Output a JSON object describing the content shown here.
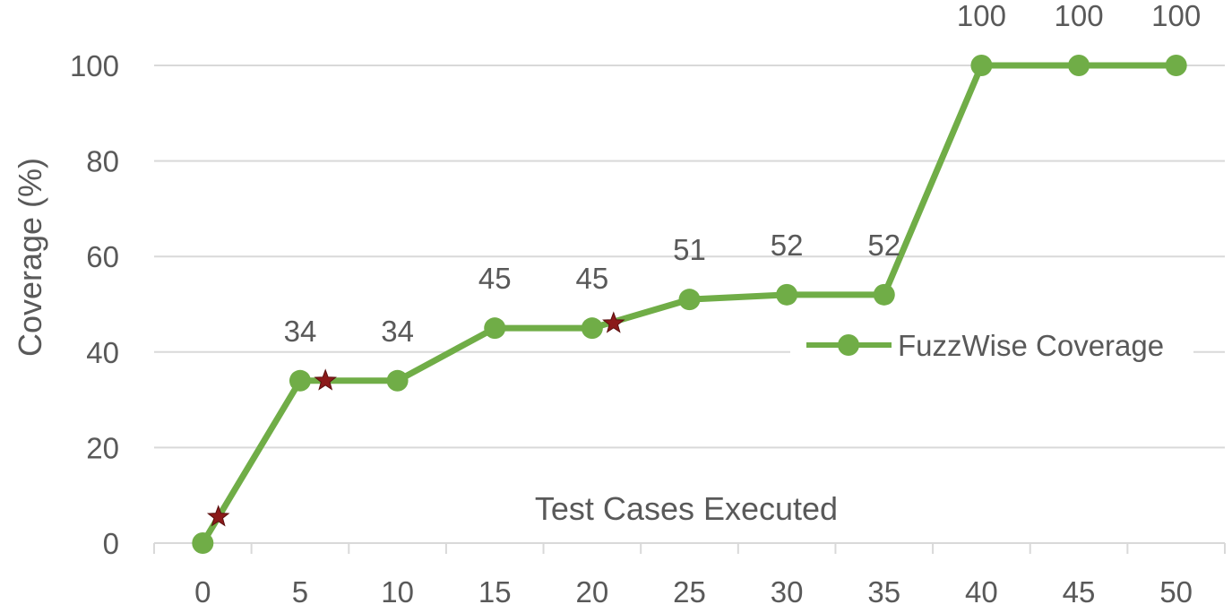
{
  "chart_data": {
    "type": "line",
    "title": "",
    "xlabel": "Test Cases Executed",
    "ylabel": "Coverage (%)",
    "x": [
      0,
      5,
      10,
      15,
      20,
      25,
      30,
      35,
      40,
      45,
      50
    ],
    "series": [
      {
        "name": "FuzzWise Coverage",
        "values": [
          0,
          34,
          34,
          45,
          45,
          51,
          52,
          52,
          100,
          100,
          100
        ],
        "color": "#70AD47"
      }
    ],
    "data_labels": [
      "",
      "34",
      "34",
      "45",
      "45",
      "51",
      "52",
      "52",
      "100",
      "100",
      "100"
    ],
    "markers": [
      {
        "x": 0.8,
        "y": 5.5
      },
      {
        "x": 6.3,
        "y": 34
      },
      {
        "x": 21.1,
        "y": 46
      }
    ],
    "marker_color": "#8B1A1A",
    "ylim": [
      0,
      100
    ],
    "yticks": [
      0,
      20,
      40,
      60,
      80,
      100
    ],
    "grid": true,
    "legend": "right"
  }
}
